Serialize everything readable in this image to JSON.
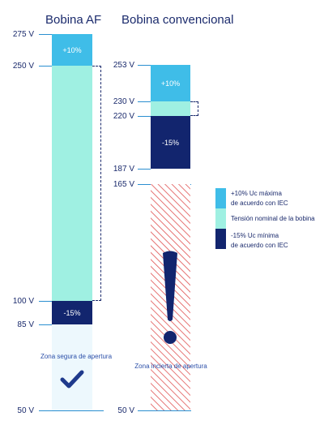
{
  "colors": {
    "plus10": "#3fbde8",
    "nominal": "#9ff0e2",
    "minus15": "#12256e",
    "safe_zone": "#edf8fd",
    "hatch": "#e05252",
    "tick": "#2b8fd0",
    "text": "#1a2a6c"
  },
  "titles": {
    "af": "Bobina AF",
    "conventional": "Bobina convencional"
  },
  "af": {
    "ticks": [
      "275 V",
      "250 V",
      "100 V",
      "85 V",
      "50 V"
    ],
    "plus_label": "+10%",
    "minus_label": "-15%",
    "safe_zone_label": "Zona segura de apertura"
  },
  "conventional": {
    "ticks": [
      "253 V",
      "230 V",
      "220 V",
      "187 V",
      "165 V",
      "50 V"
    ],
    "plus_label": "+10%",
    "minus_label": "-15%",
    "uncertain_zone_label": "Zona incierta de apertura"
  },
  "legend": [
    {
      "icon": "plus10",
      "text": "+10% Uc máxima\nde acuerdo con IEC"
    },
    {
      "icon": "nominal",
      "text": "Tensión nominal de la bobina"
    },
    {
      "icon": "minus15",
      "text": "-15% Uc mínima\nde acuerdo con IEC"
    }
  ]
}
